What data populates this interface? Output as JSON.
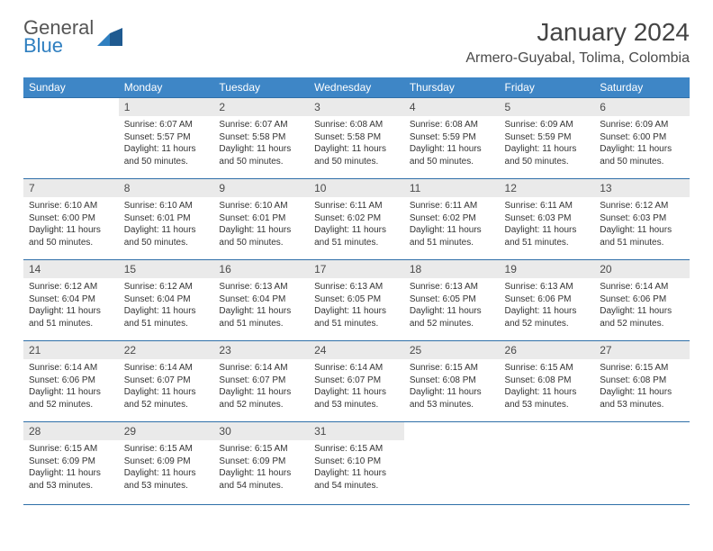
{
  "brand": {
    "word1": "General",
    "word2": "Blue"
  },
  "title": "January 2024",
  "location": "Armero-Guyabal, Tolima, Colombia",
  "colors": {
    "header_bg": "#3e86c6",
    "header_text": "#ffffff",
    "daynum_bg": "#eaeaea",
    "rule": "#2f6fa8",
    "brand_accent": "#2f7fc0"
  },
  "typography": {
    "title_fontsize": 28,
    "location_fontsize": 16,
    "weekday_fontsize": 12,
    "daynum_fontsize": 12,
    "info_fontsize": 10
  },
  "weekdays": [
    "Sunday",
    "Monday",
    "Tuesday",
    "Wednesday",
    "Thursday",
    "Friday",
    "Saturday"
  ],
  "labels": {
    "sunrise": "Sunrise:",
    "sunset": "Sunset:",
    "daylight": "Daylight:"
  },
  "weeks": [
    [
      {
        "n": "",
        "empty": true
      },
      {
        "n": "1",
        "sunrise": "6:07 AM",
        "sunset": "5:57 PM",
        "daylight": "11 hours and 50 minutes."
      },
      {
        "n": "2",
        "sunrise": "6:07 AM",
        "sunset": "5:58 PM",
        "daylight": "11 hours and 50 minutes."
      },
      {
        "n": "3",
        "sunrise": "6:08 AM",
        "sunset": "5:58 PM",
        "daylight": "11 hours and 50 minutes."
      },
      {
        "n": "4",
        "sunrise": "6:08 AM",
        "sunset": "5:59 PM",
        "daylight": "11 hours and 50 minutes."
      },
      {
        "n": "5",
        "sunrise": "6:09 AM",
        "sunset": "5:59 PM",
        "daylight": "11 hours and 50 minutes."
      },
      {
        "n": "6",
        "sunrise": "6:09 AM",
        "sunset": "6:00 PM",
        "daylight": "11 hours and 50 minutes."
      }
    ],
    [
      {
        "n": "7",
        "sunrise": "6:10 AM",
        "sunset": "6:00 PM",
        "daylight": "11 hours and 50 minutes."
      },
      {
        "n": "8",
        "sunrise": "6:10 AM",
        "sunset": "6:01 PM",
        "daylight": "11 hours and 50 minutes."
      },
      {
        "n": "9",
        "sunrise": "6:10 AM",
        "sunset": "6:01 PM",
        "daylight": "11 hours and 50 minutes."
      },
      {
        "n": "10",
        "sunrise": "6:11 AM",
        "sunset": "6:02 PM",
        "daylight": "11 hours and 51 minutes."
      },
      {
        "n": "11",
        "sunrise": "6:11 AM",
        "sunset": "6:02 PM",
        "daylight": "11 hours and 51 minutes."
      },
      {
        "n": "12",
        "sunrise": "6:11 AM",
        "sunset": "6:03 PM",
        "daylight": "11 hours and 51 minutes."
      },
      {
        "n": "13",
        "sunrise": "6:12 AM",
        "sunset": "6:03 PM",
        "daylight": "11 hours and 51 minutes."
      }
    ],
    [
      {
        "n": "14",
        "sunrise": "6:12 AM",
        "sunset": "6:04 PM",
        "daylight": "11 hours and 51 minutes."
      },
      {
        "n": "15",
        "sunrise": "6:12 AM",
        "sunset": "6:04 PM",
        "daylight": "11 hours and 51 minutes."
      },
      {
        "n": "16",
        "sunrise": "6:13 AM",
        "sunset": "6:04 PM",
        "daylight": "11 hours and 51 minutes."
      },
      {
        "n": "17",
        "sunrise": "6:13 AM",
        "sunset": "6:05 PM",
        "daylight": "11 hours and 51 minutes."
      },
      {
        "n": "18",
        "sunrise": "6:13 AM",
        "sunset": "6:05 PM",
        "daylight": "11 hours and 52 minutes."
      },
      {
        "n": "19",
        "sunrise": "6:13 AM",
        "sunset": "6:06 PM",
        "daylight": "11 hours and 52 minutes."
      },
      {
        "n": "20",
        "sunrise": "6:14 AM",
        "sunset": "6:06 PM",
        "daylight": "11 hours and 52 minutes."
      }
    ],
    [
      {
        "n": "21",
        "sunrise": "6:14 AM",
        "sunset": "6:06 PM",
        "daylight": "11 hours and 52 minutes."
      },
      {
        "n": "22",
        "sunrise": "6:14 AM",
        "sunset": "6:07 PM",
        "daylight": "11 hours and 52 minutes."
      },
      {
        "n": "23",
        "sunrise": "6:14 AM",
        "sunset": "6:07 PM",
        "daylight": "11 hours and 52 minutes."
      },
      {
        "n": "24",
        "sunrise": "6:14 AM",
        "sunset": "6:07 PM",
        "daylight": "11 hours and 53 minutes."
      },
      {
        "n": "25",
        "sunrise": "6:15 AM",
        "sunset": "6:08 PM",
        "daylight": "11 hours and 53 minutes."
      },
      {
        "n": "26",
        "sunrise": "6:15 AM",
        "sunset": "6:08 PM",
        "daylight": "11 hours and 53 minutes."
      },
      {
        "n": "27",
        "sunrise": "6:15 AM",
        "sunset": "6:08 PM",
        "daylight": "11 hours and 53 minutes."
      }
    ],
    [
      {
        "n": "28",
        "sunrise": "6:15 AM",
        "sunset": "6:09 PM",
        "daylight": "11 hours and 53 minutes."
      },
      {
        "n": "29",
        "sunrise": "6:15 AM",
        "sunset": "6:09 PM",
        "daylight": "11 hours and 53 minutes."
      },
      {
        "n": "30",
        "sunrise": "6:15 AM",
        "sunset": "6:09 PM",
        "daylight": "11 hours and 54 minutes."
      },
      {
        "n": "31",
        "sunrise": "6:15 AM",
        "sunset": "6:10 PM",
        "daylight": "11 hours and 54 minutes."
      },
      {
        "n": "",
        "empty": true
      },
      {
        "n": "",
        "empty": true
      },
      {
        "n": "",
        "empty": true
      }
    ]
  ]
}
